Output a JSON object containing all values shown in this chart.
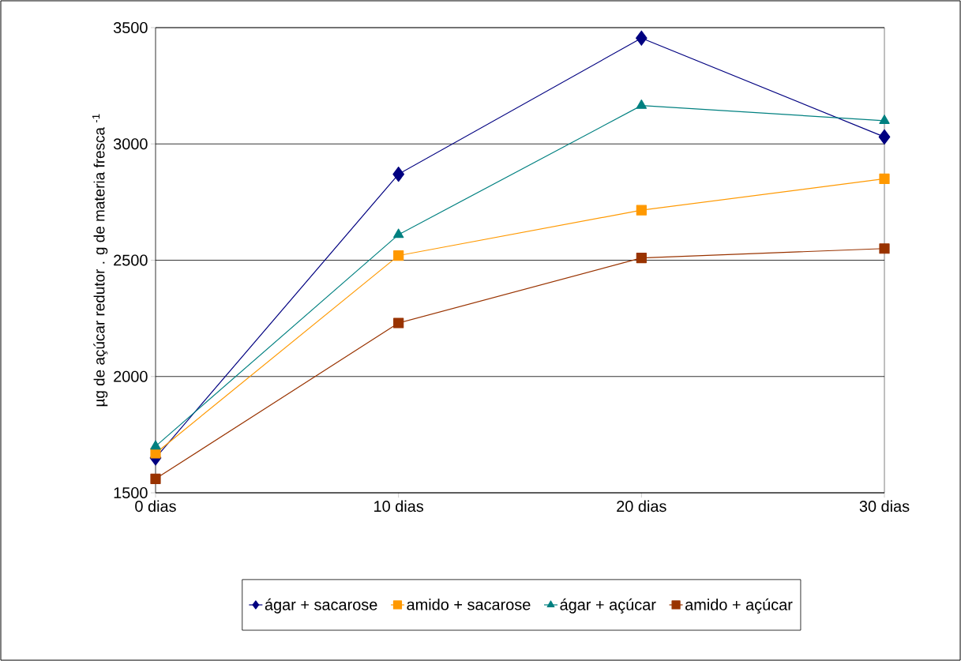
{
  "chart_data": {
    "type": "line",
    "ylabel": "µg de açúcar redutor . g de materia fresca $^{-1}$",
    "categories": [
      "0 dias",
      "10 dias",
      "20 dias",
      "30 dias"
    ],
    "series": [
      {
        "name": "ágar + sacarose",
        "color": "#000080",
        "marker": "diamond",
        "values": [
          1650,
          2870,
          3455,
          3030
        ]
      },
      {
        "name": "amido + sacarose",
        "color": "#ff9900",
        "marker": "square",
        "values": [
          1670,
          2520,
          2715,
          2850
        ]
      },
      {
        "name": "ágar + açúcar",
        "color": "#008080",
        "marker": "triangle",
        "values": [
          1700,
          2610,
          3165,
          3100
        ]
      },
      {
        "name": "amido + açúcar",
        "color": "#993300",
        "marker": "square",
        "values": [
          1560,
          2230,
          2510,
          2550
        ]
      }
    ],
    "ylim": [
      1500,
      3500
    ],
    "yticks": [
      1500,
      2000,
      2500,
      3000,
      3500
    ],
    "grid": "y",
    "legend": "bottom"
  }
}
